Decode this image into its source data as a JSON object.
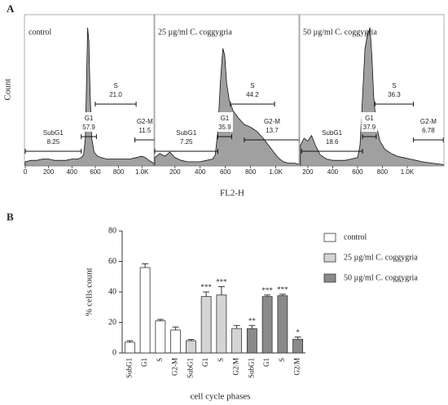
{
  "figure": {
    "panel_a_label": "A",
    "panel_a_ylabel": "Count",
    "panel_a_xlabel": "FL2-H",
    "panel_b_label": "B"
  },
  "chart_data": [
    {
      "type": "area",
      "title": "control",
      "color": "#a0a0a0",
      "x": [
        0,
        50,
        100,
        150,
        200,
        250,
        300,
        350,
        400,
        450,
        480,
        500,
        515,
        525,
        535,
        545,
        555,
        570,
        590,
        620,
        650,
        700,
        750,
        800,
        850,
        900,
        950,
        1000,
        1030,
        1060,
        1080,
        1100
      ],
      "values": [
        3,
        4,
        4,
        5,
        5,
        4,
        4,
        4,
        5,
        5,
        6,
        8,
        20,
        60,
        100,
        90,
        55,
        20,
        10,
        7,
        6,
        5,
        5,
        5,
        5,
        5,
        6,
        7,
        6,
        4,
        3,
        2
      ],
      "xlim": [
        0,
        1110
      ],
      "ylim": [
        0,
        100
      ],
      "xticks": [
        0,
        200,
        400,
        600,
        800,
        {
          "value": 1000,
          "label": "1.0K"
        }
      ],
      "gates": {
        "names": [
          "SubG1",
          "G1",
          "S",
          "G2-M"
        ],
        "values": [
          8.25,
          57.9,
          21,
          11.5
        ],
        "value_labels": [
          "8.25",
          "57.9",
          "21.0",
          "11.5"
        ],
        "ranges": [
          [
            0,
            480
          ],
          [
            480,
            610
          ],
          [
            600,
            950
          ],
          [
            940,
            1110
          ]
        ]
      }
    },
    {
      "type": "area",
      "title": "25 µg/ml C. coggygria",
      "color": "#a0a0a0",
      "x": [
        40,
        80,
        120,
        160,
        200,
        250,
        300,
        350,
        400,
        450,
        500,
        520,
        540,
        560,
        580,
        595,
        610,
        630,
        660,
        700,
        750,
        800,
        850,
        900,
        950,
        1000,
        1030,
        1060,
        1100,
        1150,
        1190
      ],
      "values": [
        6,
        9,
        7,
        10,
        6,
        4,
        3,
        3,
        3,
        4,
        5,
        8,
        25,
        60,
        85,
        80,
        60,
        48,
        40,
        35,
        30,
        28,
        25,
        20,
        14,
        8,
        5,
        3,
        2,
        2,
        1
      ],
      "xlim": [
        40,
        1190
      ],
      "ylim": [
        0,
        100
      ],
      "xticks": [
        200,
        400,
        600,
        800,
        {
          "value": 1000,
          "label": "1.0K"
        }
      ],
      "gates": {
        "names": [
          "SubG1",
          "G1",
          "S",
          "G2-M"
        ],
        "values": [
          7.25,
          35.9,
          44.2,
          13.7
        ],
        "value_labels": [
          "7.25",
          "35.9",
          "44.2",
          "13.7"
        ],
        "ranges": [
          [
            40,
            540
          ],
          [
            540,
            650
          ],
          [
            640,
            990
          ],
          [
            750,
            1190
          ]
        ]
      }
    },
    {
      "type": "area",
      "title": "50 µg/ml C. coggygria",
      "color": "#a0a0a0",
      "x": [
        140,
        170,
        200,
        230,
        260,
        300,
        350,
        400,
        450,
        500,
        550,
        600,
        620,
        640,
        660,
        680,
        700,
        715,
        730,
        750,
        780,
        820,
        870,
        920,
        970,
        1020,
        1070,
        1120,
        1200,
        1290
      ],
      "values": [
        15,
        20,
        18,
        22,
        15,
        8,
        5,
        4,
        4,
        4,
        5,
        6,
        15,
        50,
        85,
        95,
        100,
        80,
        50,
        30,
        18,
        12,
        9,
        7,
        6,
        5,
        4,
        3,
        2,
        1
      ],
      "xlim": [
        135,
        1295
      ],
      "ylim": [
        0,
        100
      ],
      "xticks": [
        200,
        400,
        600,
        800,
        {
          "value": 1000,
          "label": "1.0K"
        }
      ],
      "gates": {
        "names": [
          "SubG1",
          "G1",
          "S",
          "G2-M"
        ],
        "values": [
          18.6,
          37.9,
          36.3,
          6.78
        ],
        "value_labels": [
          "18.6",
          "37.9",
          "36.3",
          "6.78"
        ],
        "ranges": [
          [
            150,
            640
          ],
          [
            640,
            750
          ],
          [
            740,
            1050
          ],
          [
            1050,
            1290
          ]
        ]
      }
    },
    {
      "type": "bar",
      "ylabel": "% cells count",
      "xlabel": "cell cycle phases",
      "ylim": [
        0,
        80
      ],
      "yticks": [
        0,
        20,
        40,
        60,
        80
      ],
      "legend": "upper right",
      "series": [
        {
          "name": "control",
          "color": "#ffffff",
          "categories": [
            "SubG1",
            "G1",
            "S",
            "G2-M"
          ],
          "values": [
            7,
            56,
            21,
            15
          ],
          "errors": [
            1,
            2.5,
            1,
            2
          ],
          "annotations": [
            null,
            null,
            null,
            null
          ]
        },
        {
          "name": "25 µg/ml C. coggygria",
          "color": "#d4d4d4",
          "categories": [
            "SubG1",
            "G1",
            "S",
            "G2/M"
          ],
          "values": [
            8,
            37,
            38,
            16
          ],
          "errors": [
            0.8,
            3,
            5.5,
            2
          ],
          "annotations": [
            null,
            "***",
            "***",
            null
          ]
        },
        {
          "name": "50 µg/ml C. coggygria",
          "color": "#8a8a8a",
          "categories": [
            "SubG1",
            "G1",
            "S",
            "G2/M"
          ],
          "values": [
            16,
            37,
            37.5,
            9
          ],
          "errors": [
            2,
            1,
            1,
            1.5
          ],
          "annotations": [
            "**",
            "***",
            "***",
            "*"
          ]
        }
      ]
    }
  ]
}
